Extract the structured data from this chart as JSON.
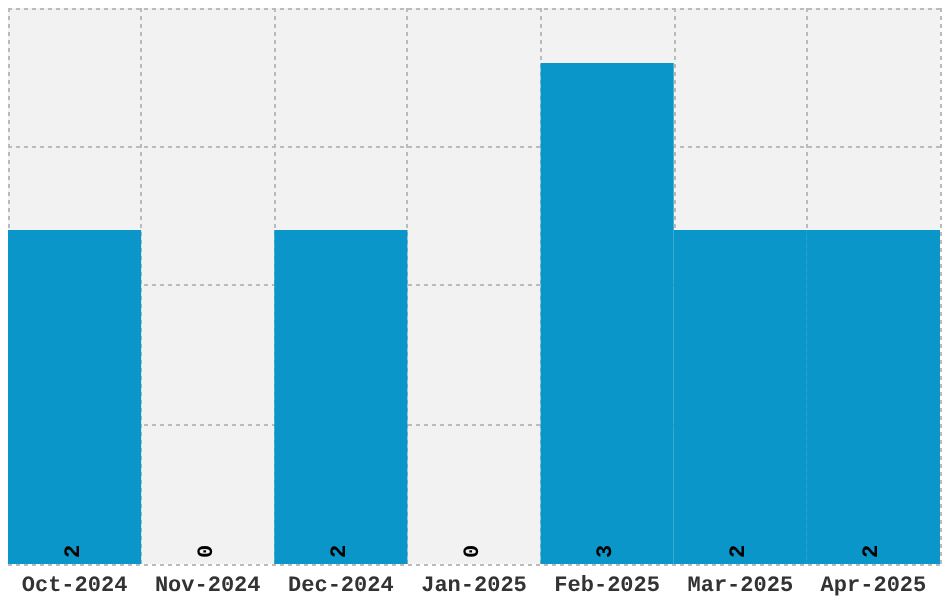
{
  "chart_data": {
    "type": "bar",
    "categories": [
      "Oct-2024",
      "Nov-2024",
      "Dec-2024",
      "Jan-2025",
      "Feb-2025",
      "Mar-2025",
      "Apr-2025"
    ],
    "values": [
      2,
      0,
      2,
      0,
      3,
      2,
      2
    ],
    "color": "#0a96c8",
    "data_labels": true,
    "ylim": [
      0,
      3.33
    ],
    "yticks": [
      {
        "value": 0,
        "label": null
      },
      {
        "value": 0.83,
        "label": null
      },
      {
        "value": 1.67,
        "label": null
      },
      {
        "value": 2.5,
        "label": null
      },
      {
        "value": 3.33,
        "label": null
      }
    ],
    "tick_labels": "x",
    "grid": true
  }
}
